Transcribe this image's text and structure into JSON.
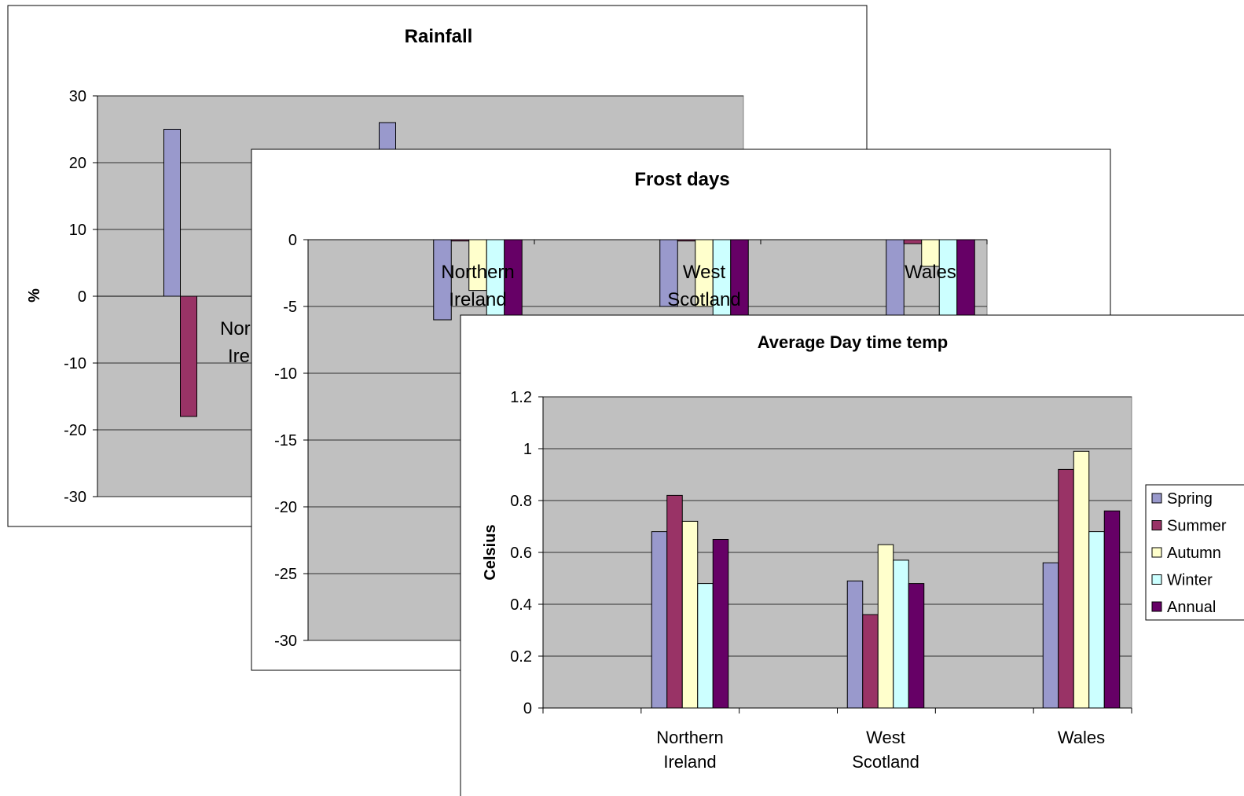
{
  "colors": {
    "plot_bg": "#c0c0c0",
    "spring": "#9999cc",
    "summer": "#993366",
    "autumn": "#ffffcc",
    "winter": "#ccffff",
    "annual": "#660066"
  },
  "chart_data": [
    {
      "type": "bar",
      "title": "Rainfall",
      "ylabel": "%",
      "xlabel": "",
      "ylim": [
        -30,
        30
      ],
      "yticks": [
        "30",
        "20",
        "10",
        "0",
        "-10",
        "-20",
        "-30"
      ],
      "categories": [
        "Northern Ireland"
      ],
      "category_label_visible": [
        [
          "Nor",
          "Ire"
        ]
      ],
      "series": [
        {
          "name": "Spring",
          "values": [
            25
          ]
        },
        {
          "name": "Summer",
          "values": [
            -18
          ]
        }
      ],
      "second_group_spring": 26,
      "grid": true
    },
    {
      "type": "bar",
      "title": "Frost days",
      "ylabel": "",
      "xlabel": "",
      "ylim": [
        -30,
        0
      ],
      "yticks": [
        "0",
        "-5",
        "-10",
        "-15",
        "-20",
        "-25",
        "-30"
      ],
      "categories": [
        "Northern Ireland",
        "West Scotland",
        "Wales"
      ],
      "category_lines": [
        [
          "Northern",
          "Ireland"
        ],
        [
          "West",
          "Scotland"
        ],
        [
          "Wales"
        ]
      ],
      "series": [
        {
          "name": "Spring",
          "values": [
            -6,
            -5,
            -6
          ]
        },
        {
          "name": "Summer",
          "values": [
            -0.1,
            -0.1,
            -0.3
          ]
        },
        {
          "name": "Autumn",
          "values": [
            -3.8,
            -5,
            -2
          ]
        },
        {
          "name": "Winter",
          "values": [
            -6,
            -6,
            -6
          ]
        },
        {
          "name": "Annual",
          "values": [
            -6,
            -6,
            -6
          ]
        }
      ],
      "grid": true
    },
    {
      "type": "bar",
      "title": "Average Day time temp",
      "ylabel": "Celsius",
      "xlabel": "",
      "ylim": [
        0,
        1.2
      ],
      "yticks": [
        "1.2",
        "1",
        "0.8",
        "0.6",
        "0.4",
        "0.2",
        "0"
      ],
      "categories": [
        "Northern Ireland",
        "West Scotland",
        "Wales"
      ],
      "category_lines": [
        [
          "Northern",
          "Ireland"
        ],
        [
          "West",
          "Scotland"
        ],
        [
          "Wales"
        ]
      ],
      "series": [
        {
          "name": "Spring",
          "values": [
            0.68,
            0.49,
            0.56
          ]
        },
        {
          "name": "Summer",
          "values": [
            0.82,
            0.36,
            0.92
          ]
        },
        {
          "name": "Autumn",
          "values": [
            0.72,
            0.63,
            0.99
          ]
        },
        {
          "name": "Winter",
          "values": [
            0.48,
            0.57,
            0.68
          ]
        },
        {
          "name": "Annual",
          "values": [
            0.65,
            0.48,
            0.76
          ]
        }
      ],
      "legend": {
        "position": "right",
        "entries": [
          "Spring",
          "Summer",
          "Autumn",
          "Winter",
          "Annual"
        ]
      },
      "grid": true
    }
  ]
}
